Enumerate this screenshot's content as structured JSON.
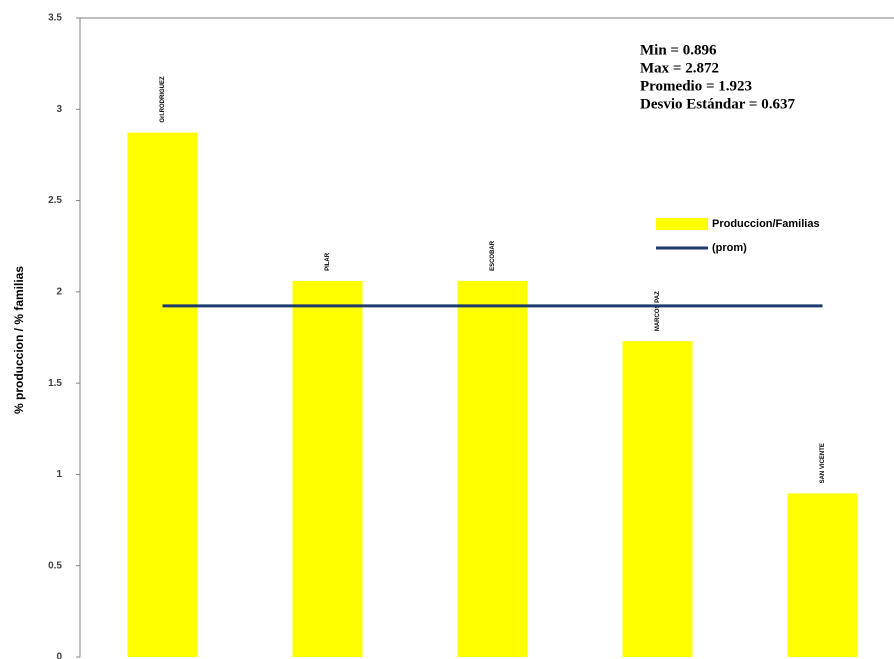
{
  "chart_data": {
    "type": "bar",
    "y_label": "% produccion / % familias",
    "categories": [
      "Grl.RODRIGUEZ",
      "PILAR",
      "ESCOBAR",
      "MARCOS PAZ",
      "SAN VICENTE"
    ],
    "series": [
      {
        "name": "Produccion/Familias",
        "type": "bar",
        "color": "#ffff00",
        "values": [
          2.872,
          2.06,
          2.06,
          1.73,
          0.896
        ]
      },
      {
        "name": "(prom)",
        "type": "line",
        "color": "#1f3a6e",
        "values": [
          1.923,
          1.923,
          1.923,
          1.923,
          1.923
        ]
      }
    ],
    "annotations": [
      "Min = 0.896",
      "Max = 2.872",
      "Promedio = 1.923",
      "Desvio Estándar = 0.637"
    ],
    "ylim": [
      0,
      3.5
    ],
    "yticks": [
      0,
      0.5,
      1,
      1.5,
      2,
      2.5,
      3,
      3.5
    ],
    "grid": false
  }
}
